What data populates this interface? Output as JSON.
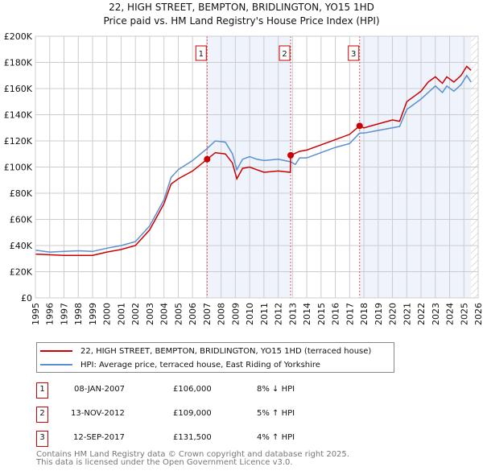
{
  "chart_data": {
    "type": "line",
    "title": "22, HIGH STREET, BEMPTON, BRIDLINGTON, YO15 1HD",
    "subtitle": "Price paid vs. HM Land Registry's House Price Index (HPI)",
    "xlim": [
      1995,
      2026
    ],
    "ylim": [
      0,
      200000
    ],
    "x_ticks": [
      "1995",
      "1996",
      "1997",
      "1998",
      "1999",
      "2000",
      "2001",
      "2002",
      "2003",
      "2004",
      "2005",
      "2006",
      "2007",
      "2008",
      "2009",
      "2010",
      "2011",
      "2012",
      "2013",
      "2014",
      "2015",
      "2016",
      "2017",
      "2018",
      "2019",
      "2020",
      "2021",
      "2022",
      "2023",
      "2024",
      "2025",
      "2026"
    ],
    "y_ticks": [
      "£0",
      "£20K",
      "£40K",
      "£60K",
      "£80K",
      "£100K",
      "£120K",
      "£140K",
      "£160K",
      "£180K",
      "£200K"
    ],
    "grid": true,
    "series": [
      {
        "name": "22, HIGH STREET, BEMPTON, BRIDLINGTON, YO15 1HD (terraced house)",
        "color": "#cc0000",
        "x": [
          1995,
          1997,
          1999,
          2000,
          2001,
          2002,
          2003,
          2004,
          2004.5,
          2005,
          2006,
          2007.02,
          2007.6,
          2008.3,
          2008.8,
          2009.1,
          2009.5,
          2010,
          2010.5,
          2011,
          2012,
          2012.85,
          2012.87,
          2013.5,
          2014,
          2015,
          2016,
          2017,
          2017.7,
          2018,
          2019,
          2020,
          2020.5,
          2021,
          2021.5,
          2022,
          2022.5,
          2023,
          2023.5,
          2023.8,
          2024.3,
          2024.8,
          2025.2,
          2025.5
        ],
        "y": [
          33500,
          32500,
          32500,
          35000,
          37000,
          40000,
          52000,
          72000,
          87000,
          91000,
          97000,
          106000,
          111000,
          110000,
          103000,
          91000,
          99000,
          100000,
          98000,
          96000,
          97000,
          96000,
          109000,
          112000,
          113000,
          117000,
          121000,
          125000,
          131500,
          130000,
          133000,
          136000,
          135000,
          150000,
          154000,
          158000,
          165000,
          169000,
          164000,
          169000,
          165000,
          170000,
          177000,
          174000
        ]
      },
      {
        "name": "HPI: Average price, terraced house, East Riding of Yorkshire",
        "color": "#5b8fd0",
        "x": [
          1995,
          1996,
          1997,
          1998,
          1999,
          2000,
          2001,
          2002,
          2003,
          2004,
          2004.5,
          2005,
          2006,
          2007,
          2007.6,
          2008.3,
          2008.8,
          2009.1,
          2009.5,
          2010,
          2010.5,
          2011,
          2012,
          2012.87,
          2013.2,
          2013.5,
          2014,
          2015,
          2016,
          2017,
          2017.7,
          2018,
          2019,
          2020,
          2020.5,
          2021,
          2021.5,
          2022,
          2022.5,
          2023,
          2023.5,
          2023.8,
          2024.3,
          2024.8,
          2025.2,
          2025.5
        ],
        "y": [
          36500,
          35000,
          35500,
          36000,
          35500,
          38000,
          40000,
          43000,
          55000,
          75000,
          92000,
          98000,
          105000,
          114000,
          120000,
          119000,
          110000,
          98000,
          106000,
          108000,
          106000,
          105000,
          106000,
          104000,
          102000,
          107000,
          107000,
          111000,
          115000,
          118000,
          126000,
          126000,
          128000,
          130000,
          131000,
          144000,
          148000,
          152000,
          157000,
          162000,
          157000,
          162000,
          158000,
          163000,
          170000,
          165000
        ]
      }
    ],
    "sales": [
      {
        "label": "1",
        "x": 2007.02,
        "y": 106000,
        "date": "08-JAN-2007",
        "price": "£106,000",
        "hpi": "8% ↓ HPI"
      },
      {
        "label": "2",
        "x": 2012.87,
        "y": 109000,
        "date": "13-NOV-2012",
        "price": "£109,000",
        "hpi": "5% ↑ HPI"
      },
      {
        "label": "3",
        "x": 2017.7,
        "y": 131500,
        "date": "12-SEP-2017",
        "price": "£131,500",
        "hpi": "4% ↑ HPI"
      }
    ],
    "shaded_ranges": [
      [
        2007.02,
        2012.87
      ],
      [
        2017.7,
        2025.5
      ]
    ],
    "forecast_start": 2025.5,
    "legend_placement": "below"
  },
  "footer": [
    "Contains HM Land Registry data © Crown copyright and database right 2025.",
    "This data is licensed under the Open Government Licence v3.0."
  ]
}
